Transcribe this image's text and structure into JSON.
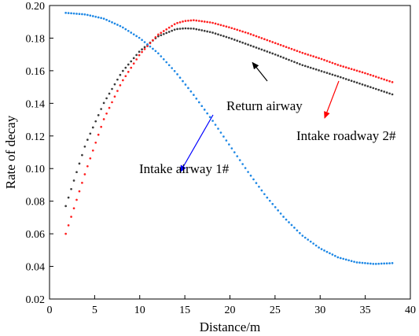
{
  "chart_data": {
    "type": "scatter",
    "xlabel": "Distance/m",
    "ylabel": "Rate of decay",
    "xlim": [
      0,
      40
    ],
    "ylim": [
      0.02,
      0.2
    ],
    "xticks": [
      "0",
      "5",
      "10",
      "15",
      "20",
      "25",
      "30",
      "35",
      "40"
    ],
    "yticks": [
      "0.02",
      "0.04",
      "0.06",
      "0.08",
      "0.10",
      "0.12",
      "0.14",
      "0.16",
      "0.18",
      "0.20"
    ],
    "grid": false,
    "legend": "none",
    "series": [
      {
        "name": "Return airway",
        "color": "#3a3a3a",
        "x": [
          1.8,
          4,
          6,
          8,
          10,
          12,
          14,
          15,
          16,
          18,
          20,
          22,
          25,
          28,
          30,
          32,
          35,
          38
        ],
        "y": [
          0.077,
          0.115,
          0.14,
          0.159,
          0.172,
          0.181,
          0.1855,
          0.186,
          0.1858,
          0.1835,
          0.18,
          0.176,
          0.17,
          0.1635,
          0.16,
          0.1565,
          0.151,
          0.1455
        ]
      },
      {
        "name": "Intake roadway 2#",
        "color": "#ff2020",
        "x": [
          1.8,
          4,
          6,
          8,
          10,
          12,
          14,
          15,
          16,
          18,
          20,
          22,
          25,
          28,
          30,
          32,
          35,
          38
        ],
        "y": [
          0.06,
          0.098,
          0.13,
          0.153,
          0.17,
          0.182,
          0.189,
          0.1905,
          0.191,
          0.1895,
          0.1865,
          0.183,
          0.177,
          0.171,
          0.1675,
          0.1635,
          0.1585,
          0.153
        ]
      },
      {
        "name": "Intake airway 1#",
        "color": "#1e88e5",
        "x": [
          1.8,
          4,
          6,
          8,
          10,
          12,
          14,
          16,
          18,
          20,
          22,
          24,
          26,
          28,
          30,
          32,
          34,
          36,
          38
        ],
        "y": [
          0.1955,
          0.1945,
          0.192,
          0.187,
          0.18,
          0.171,
          0.159,
          0.145,
          0.13,
          0.114,
          0.098,
          0.083,
          0.07,
          0.059,
          0.051,
          0.0455,
          0.0425,
          0.0415,
          0.042
        ]
      }
    ],
    "annotations": [
      {
        "text": "Return airway",
        "color": "#000000",
        "arrow_color": "#000000",
        "target_x": 22.5,
        "target_y": 0.165
      },
      {
        "text": "Intake roadway 2#",
        "color": "#000000",
        "arrow_color": "#ff0000",
        "target_x": 30.5,
        "target_y": 0.131
      },
      {
        "text": "Intake airway 1#",
        "color": "#000000",
        "arrow_color": "#0000ff",
        "target_x": 14.5,
        "target_y": 0.098
      }
    ]
  }
}
